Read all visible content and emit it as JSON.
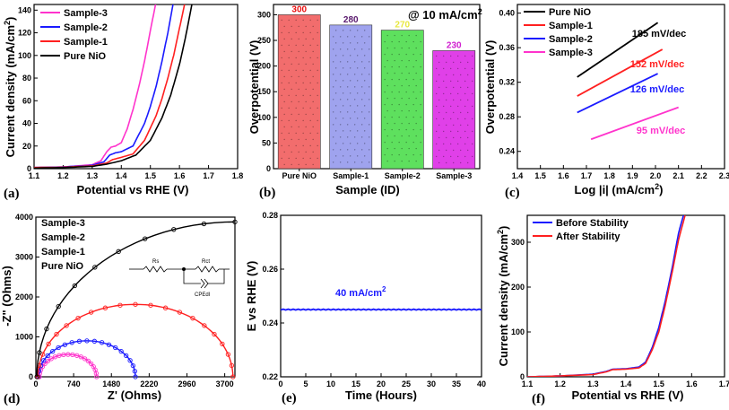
{
  "chart_data": [
    {
      "panel": "(a)",
      "type": "line",
      "xlabel": "Potential vs RHE (V)",
      "ylabel": "Current density (mA/cm2)",
      "xlim": [
        1.1,
        1.8
      ],
      "ylim": [
        0,
        145
      ],
      "xticks": [
        "1.1",
        "1.2",
        "1.3",
        "1.4",
        "1.5",
        "1.6",
        "1.7",
        "1.8"
      ],
      "yticks": [
        "0",
        "20",
        "40",
        "60",
        "80",
        "100",
        "120",
        "140"
      ],
      "legend": [
        "Sample-3",
        "Sample-2",
        "Sample-1",
        "Pure NiO"
      ],
      "series": [
        {
          "name": "Sample-3",
          "color": "#ff33cc",
          "x": [
            1.1,
            1.2,
            1.3,
            1.33,
            1.35,
            1.365,
            1.38,
            1.4,
            1.42,
            1.44,
            1.46,
            1.48,
            1.5,
            1.52
          ],
          "y": [
            1,
            1.5,
            3.5,
            7,
            15,
            19,
            20,
            23,
            35,
            52,
            72,
            95,
            122,
            148
          ]
        },
        {
          "name": "Sample-2",
          "color": "#1a1aff",
          "x": [
            1.1,
            1.2,
            1.3,
            1.34,
            1.36,
            1.38,
            1.4,
            1.44,
            1.48,
            1.5,
            1.52,
            1.54,
            1.56,
            1.58
          ],
          "y": [
            1,
            1.5,
            3,
            6,
            12,
            14,
            15,
            20,
            40,
            55,
            73,
            95,
            120,
            148
          ]
        },
        {
          "name": "Sample-1",
          "color": "#ff2020",
          "x": [
            1.1,
            1.2,
            1.3,
            1.35,
            1.37,
            1.4,
            1.44,
            1.48,
            1.52,
            1.54,
            1.56,
            1.58,
            1.6,
            1.62
          ],
          "y": [
            1,
            1.3,
            2.5,
            5,
            8,
            10,
            13,
            25,
            47,
            62,
            80,
            100,
            124,
            148
          ]
        },
        {
          "name": "Pure NiO",
          "color": "#000000",
          "x": [
            1.1,
            1.2,
            1.3,
            1.35,
            1.4,
            1.45,
            1.5,
            1.54,
            1.57,
            1.6,
            1.62,
            1.645
          ],
          "y": [
            0.5,
            1,
            2,
            4,
            7,
            12,
            25,
            45,
            65,
            92,
            115,
            148
          ]
        }
      ]
    },
    {
      "panel": "(b)",
      "type": "bar",
      "title": "@ 10 mA/cm2",
      "xlabel": "Sample (ID)",
      "ylabel": "Overpotential (V)",
      "ylim": [
        0,
        320
      ],
      "yticks": [
        "0",
        "50",
        "100",
        "150",
        "200",
        "250",
        "300"
      ],
      "categories": [
        "Pure NiO",
        "Sample-1",
        "Sample-2",
        "Sample-3"
      ],
      "values": [
        300,
        280,
        270,
        230
      ],
      "value_labels": [
        "300",
        "280",
        "270",
        "230"
      ],
      "colors": [
        "#f26d6d",
        "#9fa3ee",
        "#5ee05e",
        "#e040e8"
      ],
      "label_colors": [
        "#e81010",
        "#5a1a6e",
        "#e8e840",
        "#d020d0"
      ]
    },
    {
      "panel": "(c)",
      "type": "line",
      "xlabel": "Log |i| (mA/cm2)",
      "ylabel": "Overpotential (V)",
      "xlim": [
        1.4,
        2.3
      ],
      "ylim": [
        0.22,
        0.41
      ],
      "xticks": [
        "1.4",
        "1.5",
        "1.6",
        "1.7",
        "1.8",
        "1.9",
        "2.0",
        "2.1",
        "2.2",
        "2.3"
      ],
      "yticks": [
        "0.24",
        "0.28",
        "0.32",
        "0.36",
        "0.40"
      ],
      "legend": [
        "Pure NiO",
        "Sample-1",
        "Sample-2",
        "Sample-3"
      ],
      "annotations": [
        "185 mV/dec",
        "152 mV/dec",
        "126 mV/dec",
        "95 mV/dec"
      ],
      "series": [
        {
          "name": "Pure NiO",
          "color": "#000000",
          "x": [
            1.66,
            2.01
          ],
          "y": [
            0.326,
            0.389
          ]
        },
        {
          "name": "Sample-1",
          "color": "#ff2020",
          "x": [
            1.66,
            2.03
          ],
          "y": [
            0.304,
            0.358
          ]
        },
        {
          "name": "Sample-2",
          "color": "#1a1aff",
          "x": [
            1.66,
            2.01
          ],
          "y": [
            0.285,
            0.33
          ]
        },
        {
          "name": "Sample-3",
          "color": "#ff33cc",
          "x": [
            1.72,
            2.1
          ],
          "y": [
            0.254,
            0.291
          ]
        }
      ]
    },
    {
      "panel": "(d)",
      "type": "scatter",
      "xlabel": "Z' (Ohms)",
      "ylabel": "-Z\" (Ohms)",
      "xlim": [
        0,
        3900
      ],
      "ylim": [
        0,
        4000
      ],
      "xticks": [
        "0",
        "740",
        "1480",
        "2220",
        "2960",
        "3700"
      ],
      "xtick_values": [
        0,
        740,
        1480,
        2220,
        2960,
        3700
      ],
      "yticks": [
        "0",
        "1000",
        "2000",
        "3000",
        "4000"
      ],
      "legend": [
        "Sample-3",
        "Sample-2",
        "Sample-1",
        "Pure NiO"
      ],
      "inset": {
        "r1": "Rs",
        "r2": "Rct",
        "c": "CPEdl"
      },
      "series": [
        {
          "name": "Sample-3",
          "color": "#ff33cc",
          "kind": "arc",
          "center": 630,
          "radius": 560,
          "yscale": 1.0
        },
        {
          "name": "Sample-2",
          "color": "#1a1aff",
          "kind": "arc",
          "center": 1000,
          "radius": 950,
          "yscale": 0.95
        },
        {
          "name": "Sample-1",
          "color": "#ff2020",
          "kind": "arc",
          "center": 1950,
          "radius": 1910,
          "yscale": 0.95
        },
        {
          "name": "Pure NiO",
          "color": "#000000",
          "kind": "arc",
          "center": 3900,
          "radius": 3880,
          "yscale": 1.0
        }
      ]
    },
    {
      "panel": "(e)",
      "type": "line",
      "xlabel": "Time (Hours)",
      "ylabel": "E vs RHE (V)",
      "xlim": [
        0,
        40
      ],
      "ylim": [
        0.22,
        0.28
      ],
      "xticks": [
        "0",
        "5",
        "10",
        "15",
        "20",
        "25",
        "30",
        "35",
        "40"
      ],
      "yticks": [
        "0.22",
        "0.24",
        "0.26",
        "0.28"
      ],
      "annotation": "40 mA/cm2",
      "series": [
        {
          "name": "E",
          "color": "#1a1aff",
          "x": [
            0,
            40
          ],
          "y": [
            0.245,
            0.245
          ]
        }
      ]
    },
    {
      "panel": "(f)",
      "type": "line",
      "xlabel": "Potential vs RHE (V)",
      "ylabel": "Current density (mA/cm2)",
      "xlim": [
        1.1,
        1.7
      ],
      "ylim": [
        0,
        360
      ],
      "xticks": [
        "1.1",
        "1.2",
        "1.3",
        "1.4",
        "1.5",
        "1.6",
        "1.7"
      ],
      "yticks": [
        "0",
        "100",
        "200",
        "300"
      ],
      "legend": [
        "Before Stability",
        "After Stability"
      ],
      "series": [
        {
          "name": "Before Stability",
          "color": "#1a1aff",
          "x": [
            1.1,
            1.2,
            1.3,
            1.34,
            1.36,
            1.4,
            1.44,
            1.46,
            1.48,
            1.5,
            1.52,
            1.54,
            1.56,
            1.575
          ],
          "y": [
            0,
            2,
            6,
            12,
            17,
            18,
            22,
            33,
            65,
            110,
            170,
            240,
            320,
            360
          ]
        },
        {
          "name": "After Stability",
          "color": "#ff2020",
          "x": [
            1.1,
            1.2,
            1.3,
            1.34,
            1.36,
            1.4,
            1.44,
            1.46,
            1.48,
            1.5,
            1.52,
            1.54,
            1.56,
            1.58
          ],
          "y": [
            0,
            2,
            5,
            11,
            16,
            17,
            20,
            30,
            60,
            100,
            160,
            230,
            305,
            360
          ]
        }
      ]
    }
  ]
}
